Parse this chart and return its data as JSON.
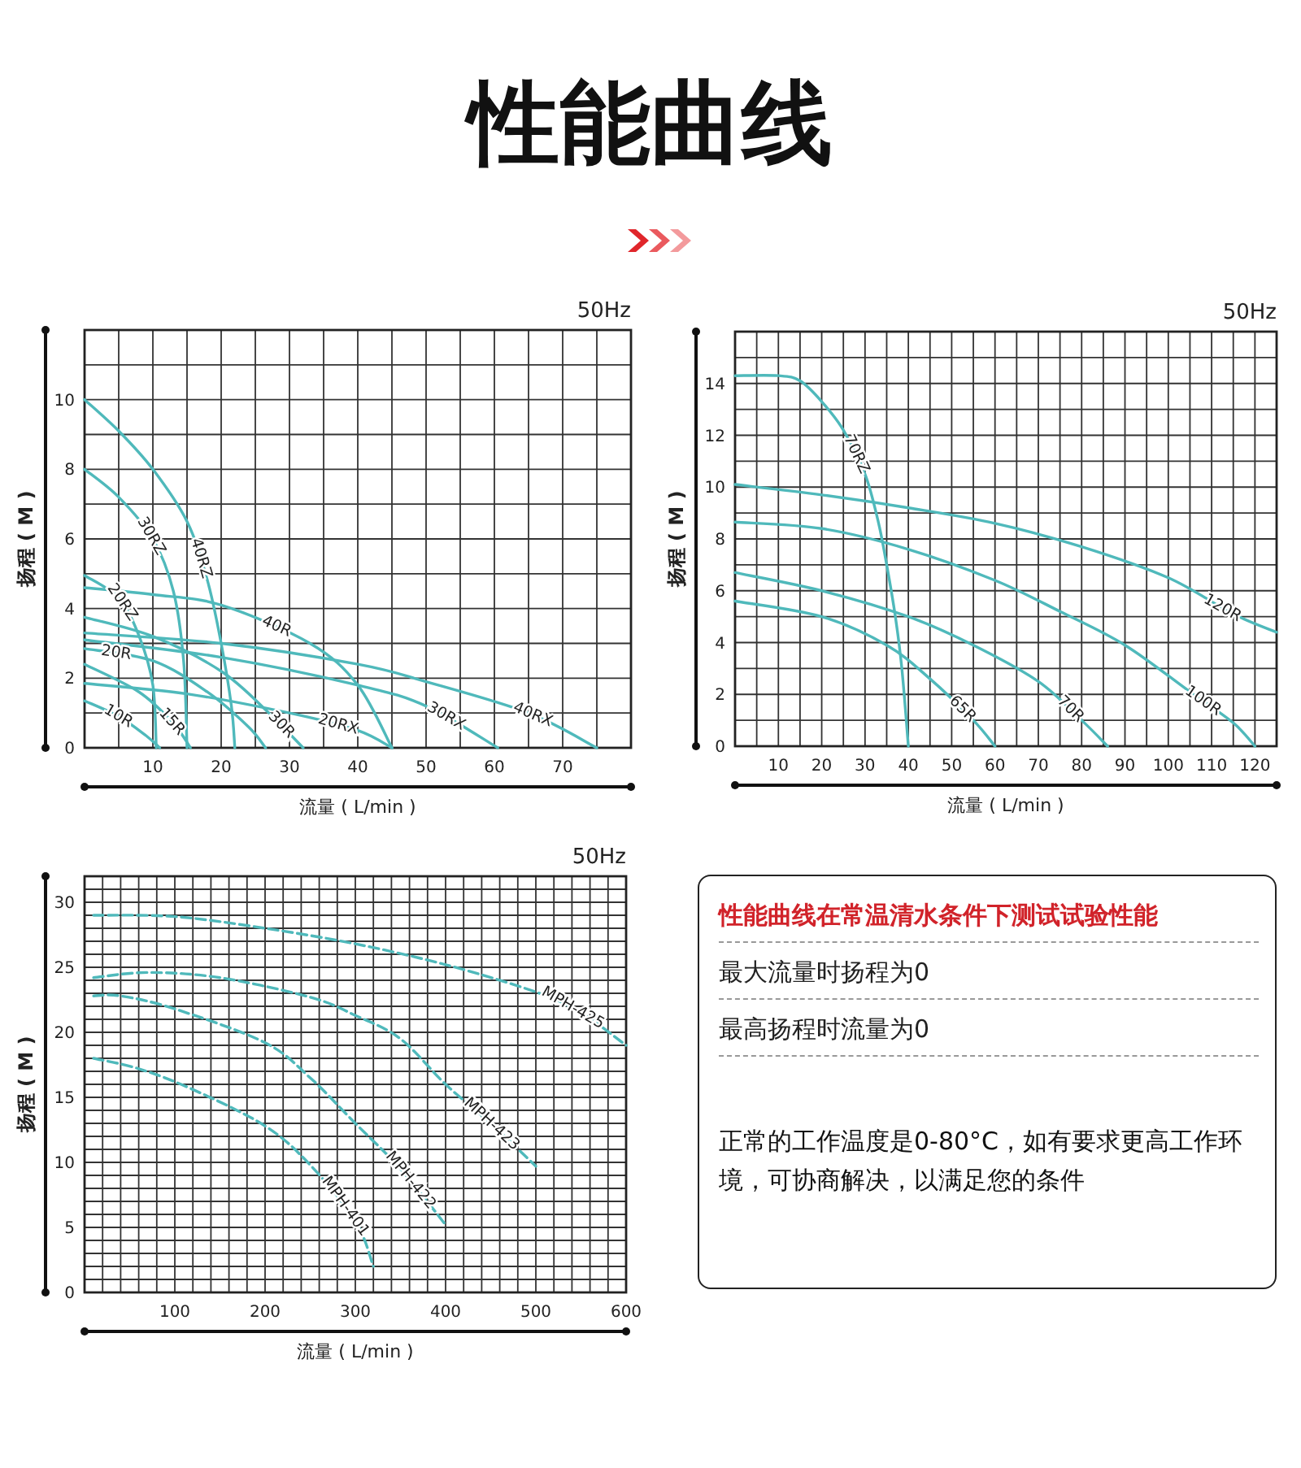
{
  "chart_data": [
    {
      "type": "line",
      "title": "性能曲线",
      "subtitle": "50Hz",
      "xlabel": "流量 ( L/min )",
      "ylabel": "扬程 ( M )",
      "grid": true,
      "line_style": "solid",
      "marker": "none",
      "xlim": [
        0,
        80
      ],
      "ylim": [
        0,
        12
      ],
      "xticks": [
        {
          "value": 5,
          "label": null
        },
        10,
        {
          "value": 15,
          "label": null
        },
        20,
        {
          "value": 25,
          "label": null
        },
        30,
        {
          "value": 35,
          "label": null
        },
        40,
        {
          "value": 45,
          "label": null
        },
        50,
        {
          "value": 55,
          "label": null
        },
        60,
        {
          "value": 65,
          "label": null
        },
        70,
        {
          "value": 75,
          "label": null
        }
      ],
      "yticks": [
        0,
        {
          "value": 1,
          "label": null
        },
        2,
        {
          "value": 3,
          "label": null
        },
        4,
        {
          "value": 5,
          "label": null
        },
        6,
        {
          "value": 7,
          "label": null
        },
        8,
        {
          "value": 9,
          "label": null
        },
        10,
        {
          "value": 11,
          "label": null
        }
      ],
      "series": [
        {
          "name": "40RZ",
          "color": "#4fb9bb",
          "x": [
            0,
            5,
            10,
            15,
            18,
            20,
            21.5,
            22
          ],
          "values": [
            10,
            9.1,
            8,
            6.5,
            4.8,
            3,
            1.2,
            0
          ]
        },
        {
          "name": "30RZ",
          "color": "#4fb9bb",
          "x": [
            0,
            5,
            10,
            13,
            14.5,
            15
          ],
          "values": [
            8,
            7.2,
            6,
            4.5,
            2.5,
            0
          ]
        },
        {
          "name": "20RZ",
          "color": "#4fb9bb",
          "x": [
            0,
            5,
            8,
            10,
            10.5
          ],
          "values": [
            4.95,
            4.3,
            3.2,
            1.8,
            0
          ]
        },
        {
          "name": "40R",
          "color": "#4fb9bb",
          "x": [
            0,
            10,
            20,
            33,
            40,
            45
          ],
          "values": [
            4.6,
            4.4,
            4.1,
            3,
            1.8,
            0
          ]
        },
        {
          "name": "30R",
          "color": "#4fb9bb",
          "x": [
            0,
            10,
            20,
            27,
            32
          ],
          "values": [
            3.75,
            3.2,
            2.2,
            1,
            0
          ]
        },
        {
          "name": "40RX",
          "color": "#4fb9bb",
          "x": [
            0,
            20,
            40,
            50,
            65,
            75
          ],
          "values": [
            3.3,
            3,
            2.4,
            1.9,
            1,
            0
          ]
        },
        {
          "name": "30RX",
          "color": "#4fb9bb",
          "x": [
            0,
            20,
            40,
            50,
            60.5
          ],
          "values": [
            3.1,
            2.6,
            1.8,
            1.2,
            0
          ]
        },
        {
          "name": "20R",
          "color": "#4fb9bb",
          "x": [
            0,
            10,
            18,
            24,
            26.5
          ],
          "values": [
            2.85,
            2.5,
            1.6,
            0.6,
            0
          ]
        },
        {
          "name": "15R",
          "color": "#4fb9bb",
          "x": [
            0,
            8,
            13,
            15.5
          ],
          "values": [
            2.4,
            1.6,
            0.7,
            0
          ]
        },
        {
          "name": "20RX",
          "color": "#4fb9bb",
          "x": [
            0,
            15,
            30,
            40,
            45
          ],
          "values": [
            1.85,
            1.55,
            1,
            0.5,
            0
          ]
        },
        {
          "name": "10R",
          "color": "#4fb9bb",
          "x": [
            0,
            5,
            9,
            11
          ],
          "values": [
            1.35,
            0.9,
            0.35,
            0
          ]
        }
      ]
    },
    {
      "type": "line",
      "subtitle": "50Hz",
      "xlabel": "流量 ( L/min )",
      "ylabel": "扬程 ( M )",
      "grid": true,
      "line_style": "solid",
      "marker": "none",
      "xlim": [
        0,
        125
      ],
      "ylim": [
        0,
        16
      ],
      "xticks": [
        {
          "value": 5,
          "label": null
        },
        10,
        {
          "value": 15,
          "label": null
        },
        20,
        {
          "value": 25,
          "label": null
        },
        30,
        {
          "value": 35,
          "label": null
        },
        40,
        {
          "value": 45,
          "label": null
        },
        50,
        {
          "value": 55,
          "label": null
        },
        60,
        {
          "value": 65,
          "label": null
        },
        70,
        {
          "value": 75,
          "label": null
        },
        80,
        {
          "value": 85,
          "label": null
        },
        90,
        {
          "value": 95,
          "label": null
        },
        100,
        {
          "value": 105,
          "label": null
        },
        110,
        {
          "value": 115,
          "label": null
        },
        120
      ],
      "yticks": [
        0,
        {
          "value": 1,
          "label": null
        },
        2,
        {
          "value": 3,
          "label": null
        },
        4,
        {
          "value": 5,
          "label": null
        },
        6,
        {
          "value": 7,
          "label": null
        },
        8,
        {
          "value": 9,
          "label": null
        },
        10,
        {
          "value": 11,
          "label": null
        },
        12,
        {
          "value": 13,
          "label": null
        },
        14,
        {
          "value": 15,
          "label": null
        }
      ],
      "series": [
        {
          "name": "70RZ",
          "color": "#4fb9bb",
          "x": [
            0,
            10,
            15,
            20,
            25,
            30,
            33,
            35,
            37,
            38.5,
            40
          ],
          "values": [
            14.3,
            14.3,
            14.1,
            13.3,
            12.2,
            10.5,
            8.7,
            7,
            5,
            3,
            0
          ]
        },
        {
          "name": "120R",
          "color": "#4fb9bb",
          "x": [
            0,
            20,
            40,
            60,
            80,
            100,
            115,
            125
          ],
          "values": [
            10.1,
            9.7,
            9.2,
            8.6,
            7.7,
            6.5,
            5.1,
            4.4
          ]
        },
        {
          "name": "100R",
          "color": "#4fb9bb",
          "x": [
            0,
            20,
            40,
            60,
            75,
            90,
            105,
            115,
            120
          ],
          "values": [
            8.65,
            8.4,
            7.6,
            6.4,
            5.2,
            3.9,
            2.1,
            0.9,
            0
          ]
        },
        {
          "name": "70R",
          "color": "#4fb9bb",
          "x": [
            0,
            20,
            40,
            55,
            70,
            80,
            86
          ],
          "values": [
            6.7,
            6,
            5,
            3.9,
            2.5,
            1,
            0
          ]
        },
        {
          "name": "65R",
          "color": "#4fb9bb",
          "x": [
            0,
            20,
            35,
            45,
            55,
            60
          ],
          "values": [
            5.6,
            5,
            3.9,
            2.6,
            1,
            0
          ]
        }
      ]
    },
    {
      "type": "line",
      "subtitle": "50Hz",
      "xlabel": "流量 ( L/min )",
      "ylabel": "扬程 ( M )",
      "grid": true,
      "line_style": "dashed",
      "marker": "none",
      "xlim": [
        0,
        600
      ],
      "ylim": [
        0,
        32
      ],
      "xticks": [
        {
          "value": 20,
          "label": null
        },
        {
          "value": 40,
          "label": null
        },
        {
          "value": 60,
          "label": null
        },
        {
          "value": 80,
          "label": null
        },
        100,
        {
          "value": 120,
          "label": null
        },
        {
          "value": 140,
          "label": null
        },
        {
          "value": 160,
          "label": null
        },
        {
          "value": 180,
          "label": null
        },
        200,
        {
          "value": 220,
          "label": null
        },
        {
          "value": 240,
          "label": null
        },
        {
          "value": 260,
          "label": null
        },
        {
          "value": 280,
          "label": null
        },
        300,
        {
          "value": 320,
          "label": null
        },
        {
          "value": 340,
          "label": null
        },
        {
          "value": 360,
          "label": null
        },
        {
          "value": 380,
          "label": null
        },
        400,
        {
          "value": 420,
          "label": null
        },
        {
          "value": 440,
          "label": null
        },
        {
          "value": 460,
          "label": null
        },
        {
          "value": 480,
          "label": null
        },
        500,
        {
          "value": 520,
          "label": null
        },
        {
          "value": 540,
          "label": null
        },
        {
          "value": 560,
          "label": null
        },
        {
          "value": 580,
          "label": null
        },
        600
      ],
      "yticks": [
        0,
        {
          "value": 1,
          "label": null
        },
        {
          "value": 2,
          "label": null
        },
        {
          "value": 3,
          "label": null
        },
        {
          "value": 4,
          "label": null
        },
        5,
        {
          "value": 6,
          "label": null
        },
        {
          "value": 7,
          "label": null
        },
        {
          "value": 8,
          "label": null
        },
        {
          "value": 9,
          "label": null
        },
        10,
        {
          "value": 11,
          "label": null
        },
        {
          "value": 12,
          "label": null
        },
        {
          "value": 13,
          "label": null
        },
        {
          "value": 14,
          "label": null
        },
        15,
        {
          "value": 16,
          "label": null
        },
        {
          "value": 17,
          "label": null
        },
        {
          "value": 18,
          "label": null
        },
        {
          "value": 19,
          "label": null
        },
        20,
        {
          "value": 21,
          "label": null
        },
        {
          "value": 22,
          "label": null
        },
        {
          "value": 23,
          "label": null
        },
        {
          "value": 24,
          "label": null
        },
        25,
        {
          "value": 26,
          "label": null
        },
        {
          "value": 27,
          "label": null
        },
        {
          "value": 28,
          "label": null
        },
        {
          "value": 29,
          "label": null
        },
        30,
        {
          "value": 31,
          "label": null
        }
      ],
      "series": [
        {
          "name": "MPH-425",
          "color": "#4fb9bb",
          "x": [
            10,
            100,
            200,
            300,
            400,
            500,
            550,
            600
          ],
          "values": [
            29,
            28.9,
            28,
            26.8,
            25.2,
            23.1,
            21.5,
            19
          ]
        },
        {
          "name": "MPH-423",
          "color": "#4fb9bb",
          "x": [
            10,
            70,
            150,
            250,
            300,
            350,
            400,
            450,
            500
          ],
          "values": [
            24.2,
            24.6,
            24.2,
            22.7,
            21.3,
            19.5,
            16,
            13,
            9.7
          ]
        },
        {
          "name": "MPH-422",
          "color": "#4fb9bb",
          "x": [
            10,
            40,
            100,
            200,
            250,
            300,
            350,
            400
          ],
          "values": [
            22.8,
            22.8,
            21.8,
            19.2,
            16.5,
            13,
            9.5,
            5.2
          ]
        },
        {
          "name": "MPH-401",
          "color": "#4fb9bb",
          "x": [
            10,
            60,
            120,
            200,
            250,
            300,
            320
          ],
          "values": [
            18,
            17.2,
            15.6,
            12.8,
            9.8,
            5.5,
            2
          ]
        }
      ]
    },
    {
      "type": "other",
      "title": "性能曲线在常温清水条件下测试试验性能",
      "annotations": [
        "最大流量时扬程为0",
        "最高扬程时流量为0",
        "正常的工作温度是0-80°C，如有要求更高工作环境，可协商解决，以满足您的条件"
      ]
    }
  ]
}
